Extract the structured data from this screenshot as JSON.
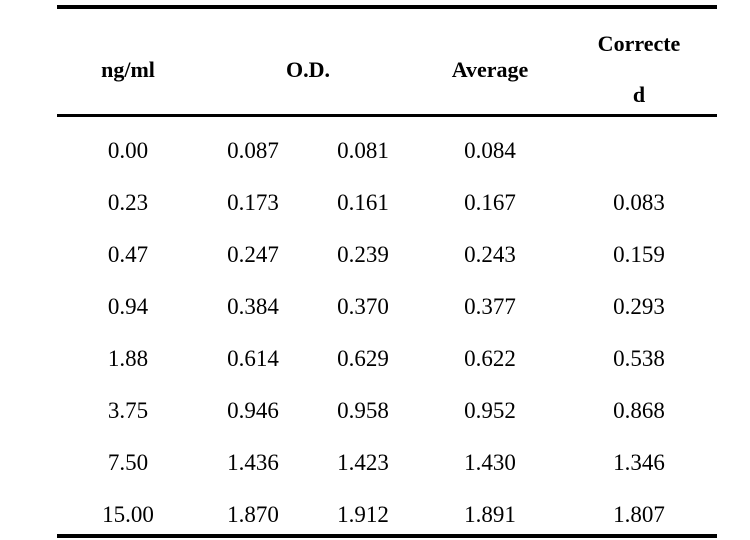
{
  "headers": {
    "ng_ml": "ng/ml",
    "od": "O.D.",
    "average": "Average",
    "corrected_line1": "Correcte",
    "corrected_line2": "d"
  },
  "rows": [
    {
      "ng": "0.00",
      "od1": "0.087",
      "od2": "0.081",
      "avg": "0.084",
      "corrected": ""
    },
    {
      "ng": "0.23",
      "od1": "0.173",
      "od2": "0.161",
      "avg": "0.167",
      "corrected": "0.083"
    },
    {
      "ng": "0.47",
      "od1": "0.247",
      "od2": "0.239",
      "avg": "0.243",
      "corrected": "0.159"
    },
    {
      "ng": "0.94",
      "od1": "0.384",
      "od2": "0.370",
      "avg": "0.377",
      "corrected": "0.293"
    },
    {
      "ng": "1.88",
      "od1": "0.614",
      "od2": "0.629",
      "avg": "0.622",
      "corrected": "0.538"
    },
    {
      "ng": "3.75",
      "od1": "0.946",
      "od2": "0.958",
      "avg": "0.952",
      "corrected": "0.868"
    },
    {
      "ng": "7.50",
      "od1": "1.436",
      "od2": "1.423",
      "avg": "1.430",
      "corrected": "1.346"
    },
    {
      "ng": "15.00",
      "od1": "1.870",
      "od2": "1.912",
      "avg": "1.891",
      "corrected": "1.807"
    }
  ]
}
